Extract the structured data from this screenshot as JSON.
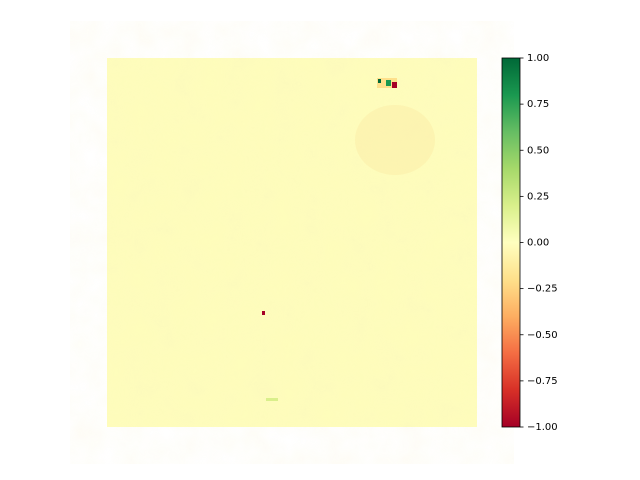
{
  "chart_data": {
    "type": "heatmap",
    "colormap": [
      "#a50026",
      "#d73027",
      "#f46d43",
      "#fdae61",
      "#fee08b",
      "#ffffbf",
      "#d9ef8b",
      "#a6d96a",
      "#66bd63",
      "#1a9850",
      "#006837"
    ],
    "clim": [
      -1,
      1
    ],
    "cticks": [
      {
        "value": -1,
        "label": "−1.00"
      },
      {
        "value": -0.75,
        "label": "−0.75"
      },
      {
        "value": -0.5,
        "label": "−0.50"
      },
      {
        "value": -0.25,
        "label": "−0.25"
      },
      {
        "value": 0,
        "label": "0.00"
      },
      {
        "value": 0.25,
        "label": "0.25"
      },
      {
        "value": 0.5,
        "label": "0.50"
      },
      {
        "value": 0.75,
        "label": "0.75"
      },
      {
        "value": 1,
        "label": "1.00"
      }
    ]
  }
}
